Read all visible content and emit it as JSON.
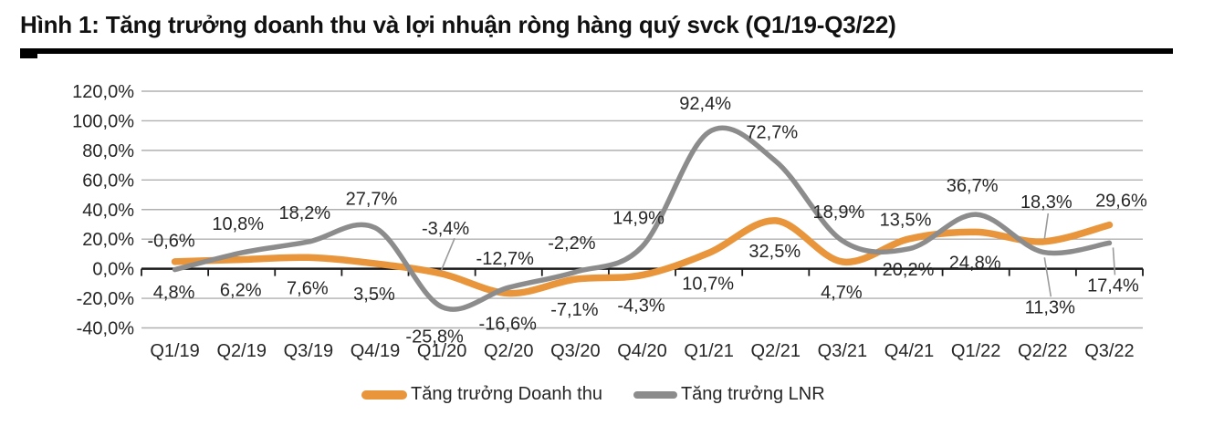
{
  "figure": {
    "title": "Hình 1: Tăng trưởng doanh thu và lợi nhuận ròng hàng quý svck (Q1/19-Q3/22)"
  },
  "chart_data": {
    "type": "line",
    "smooth": true,
    "title": "Tăng trưởng doanh thu và lợi nhuận ròng hàng quý svck (Q1/19-Q3/22)",
    "categories": [
      "Q1/19",
      "Q2/19",
      "Q3/19",
      "Q4/19",
      "Q1/20",
      "Q2/20",
      "Q3/20",
      "Q4/20",
      "Q1/21",
      "Q2/21",
      "Q3/21",
      "Q4/21",
      "Q1/22",
      "Q2/22",
      "Q3/22"
    ],
    "series": [
      {
        "name": "Tăng trưởng Doanh thu",
        "color": "#E8953C",
        "values": [
          4.8,
          6.2,
          7.6,
          3.5,
          -3.4,
          -16.6,
          -7.1,
          -4.3,
          10.7,
          32.5,
          4.7,
          20.2,
          24.8,
          18.3,
          29.6
        ],
        "labels": [
          "4,8%",
          "6,2%",
          "7,6%",
          "3,5%",
          "-3,4%",
          "-16,6%",
          "-7,1%",
          "-4,3%",
          "10,7%",
          "32,5%",
          "4,7%",
          "20,2%",
          "24,8%",
          "18,3%",
          "29,6%"
        ]
      },
      {
        "name": "Tăng trưởng LNR",
        "color": "#8C8C8C",
        "values": [
          -0.6,
          10.8,
          18.2,
          27.7,
          -25.8,
          -12.7,
          -2.2,
          14.9,
          92.4,
          72.7,
          18.9,
          13.5,
          36.7,
          11.3,
          17.4
        ],
        "labels": [
          "-0,6%",
          "10,8%",
          "18,2%",
          "27,7%",
          "-25,8%",
          "-12,7%",
          "-2,2%",
          "14,9%",
          "92,4%",
          "72,7%",
          "18,9%",
          "13,5%",
          "36,7%",
          "11,3%",
          "17,4%"
        ]
      }
    ],
    "ylim": [
      -40,
      120
    ],
    "ytick_step": 20,
    "ytick_labels": [
      "120,0%",
      "100,0%",
      "80,0%",
      "60,0%",
      "40,0%",
      "20,0%",
      "0,0%",
      "-20,0%",
      "-40,0%"
    ],
    "grid": true,
    "legend_position": "bottom",
    "colors": {
      "grid": "#B0B0B0",
      "axis": "#1A1A1A",
      "text": "#262626",
      "leader": "#9B9B9B"
    }
  }
}
